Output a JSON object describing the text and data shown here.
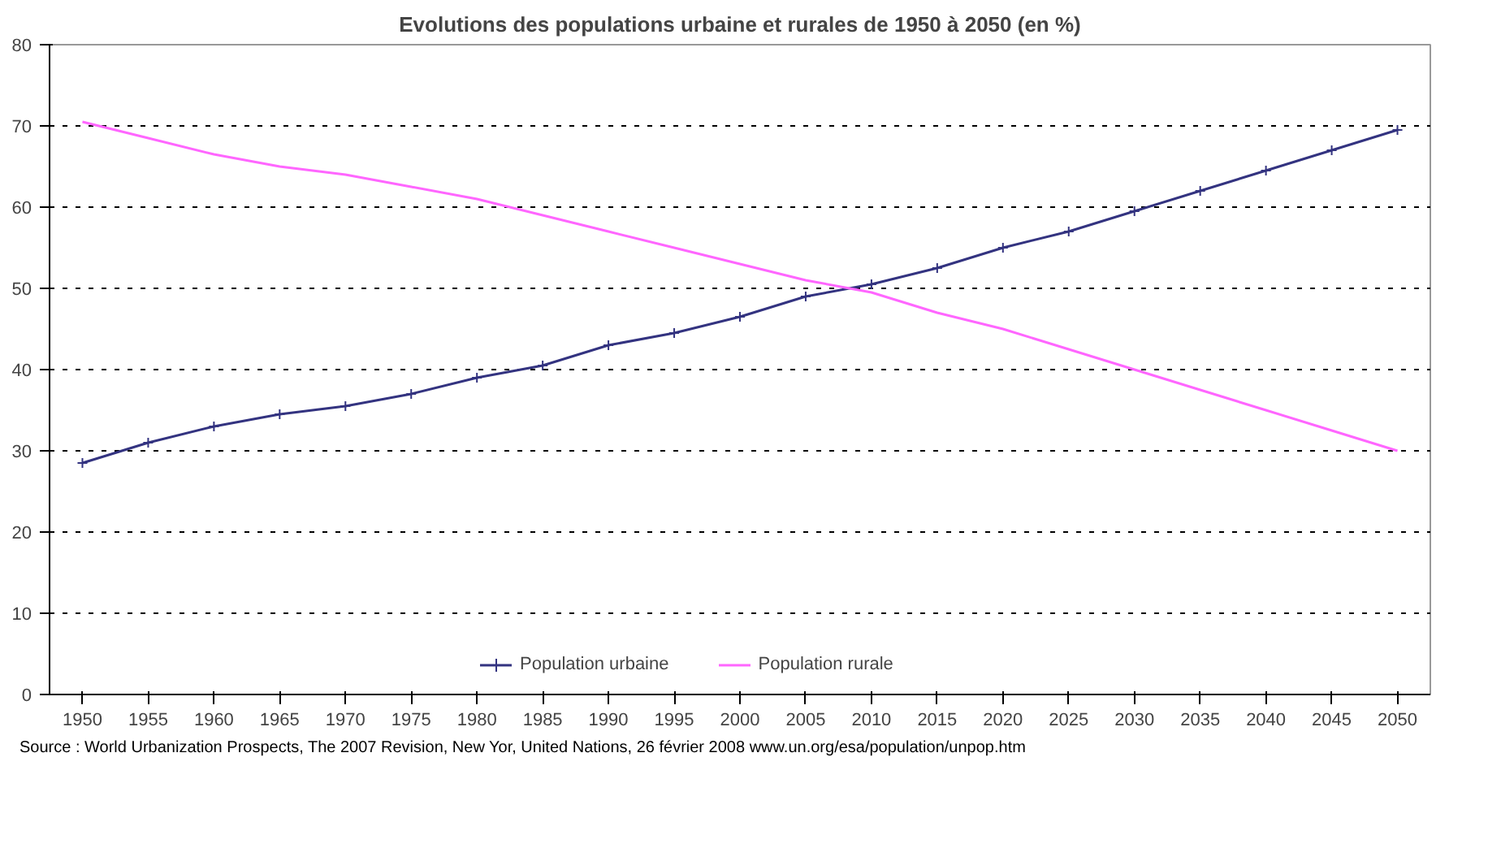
{
  "chart_data": {
    "type": "line",
    "title": "Evolutions des populations urbaine et rurales de 1950 à 2050 (en %)",
    "categories": [
      "1950",
      "1955",
      "1960",
      "1965",
      "1970",
      "1975",
      "1980",
      "1985",
      "1990",
      "1995",
      "2000",
      "2005",
      "2010",
      "2015",
      "2020",
      "2025",
      "2030",
      "2035",
      "2040",
      "2045",
      "2050"
    ],
    "series": [
      {
        "name": "Population urbaine",
        "color": "#333380",
        "marker": "cross",
        "values": [
          28.5,
          31,
          33,
          34.5,
          35.5,
          37,
          39,
          40.5,
          43,
          44.5,
          46.5,
          49,
          50.5,
          52.5,
          55,
          57,
          59.5,
          62,
          64.5,
          67,
          69.5
        ]
      },
      {
        "name": "Population rurale",
        "color": "#ff66ff",
        "marker": "none",
        "values": [
          70.5,
          68.5,
          66.5,
          65,
          64,
          62.5,
          61,
          59,
          57,
          55,
          53,
          51,
          49.5,
          47,
          45,
          42.5,
          40,
          37.5,
          35,
          32.5,
          30
        ]
      }
    ],
    "ylim": [
      0,
      80
    ],
    "yticks": [
      0,
      10,
      20,
      30,
      40,
      50,
      60,
      70,
      80
    ],
    "grid": "y",
    "legend": "bottom",
    "line_style": "solid",
    "annotations": [
      "Source : World Urbanization Prospects, The 2007 Revision, New Yor, United Nations, 26 février 2008 www.un.org/esa/population/unpop.htm"
    ]
  }
}
